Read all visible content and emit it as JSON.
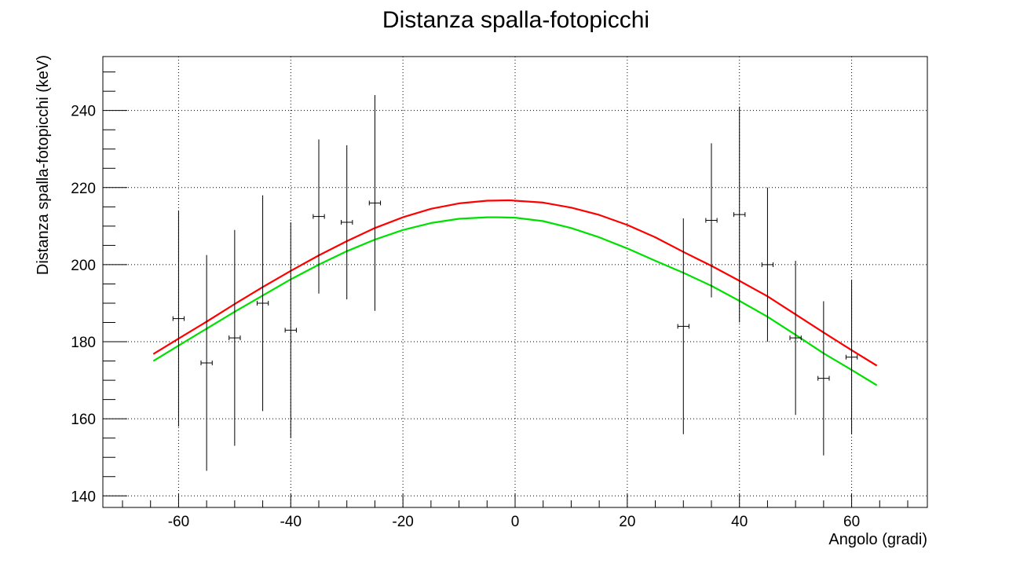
{
  "chart_data": {
    "type": "scatter",
    "title": "Distanza spalla-fotopicchi",
    "xlabel": "Angolo (gradi)",
    "ylabel": "Distanza spalla-fotopicchi (keV)",
    "xlim": [
      -73.5,
      73.5
    ],
    "ylim": [
      137,
      254
    ],
    "xticks": [
      -60,
      -40,
      -20,
      0,
      20,
      40,
      60
    ],
    "yticks": [
      140,
      160,
      180,
      200,
      220,
      240
    ],
    "grid": true,
    "points": [
      {
        "x": -60,
        "y": 186,
        "xerr": 1,
        "ylo": 158,
        "yhi": 214
      },
      {
        "x": -55,
        "y": 174.5,
        "xerr": 1,
        "ylo": 146.5,
        "yhi": 202.5
      },
      {
        "x": -50,
        "y": 181,
        "xerr": 1,
        "ylo": 153,
        "yhi": 209
      },
      {
        "x": -45,
        "y": 190,
        "xerr": 1,
        "ylo": 162,
        "yhi": 218
      },
      {
        "x": -40,
        "y": 183,
        "xerr": 1,
        "ylo": 155,
        "yhi": 211
      },
      {
        "x": -35,
        "y": 212.5,
        "xerr": 1,
        "ylo": 192.5,
        "yhi": 232.5
      },
      {
        "x": -30,
        "y": 211,
        "xerr": 1,
        "ylo": 191,
        "yhi": 231
      },
      {
        "x": -25,
        "y": 216,
        "xerr": 1,
        "ylo": 188,
        "yhi": 244
      },
      {
        "x": 30,
        "y": 184,
        "xerr": 1,
        "ylo": 156,
        "yhi": 212
      },
      {
        "x": 35,
        "y": 211.5,
        "xerr": 1,
        "ylo": 191.5,
        "yhi": 231.5
      },
      {
        "x": 40,
        "y": 213,
        "xerr": 1,
        "ylo": 185,
        "yhi": 241
      },
      {
        "x": 45,
        "y": 200,
        "xerr": 1,
        "ylo": 180,
        "yhi": 220
      },
      {
        "x": 50,
        "y": 181,
        "xerr": 1,
        "ylo": 161,
        "yhi": 201
      },
      {
        "x": 55,
        "y": 170.5,
        "xerr": 1,
        "ylo": 150.5,
        "yhi": 190.5
      },
      {
        "x": 60,
        "y": 176,
        "xerr": 1,
        "ylo": 156,
        "yhi": 196
      }
    ],
    "curves": [
      {
        "color": "#ff0000",
        "x": [
          -64.5,
          -60,
          -55,
          -50,
          -45,
          -40,
          -35,
          -30,
          -25,
          -20,
          -15,
          -10,
          -5,
          -1,
          5,
          10,
          15,
          20,
          25,
          30,
          35,
          40,
          45,
          50,
          55,
          60,
          64.5
        ],
        "y": [
          176.8,
          180.8,
          185.2,
          189.8,
          194.2,
          198.4,
          202.4,
          206.1,
          209.5,
          212.3,
          214.5,
          215.9,
          216.6,
          216.7,
          216.1,
          214.8,
          212.9,
          210.3,
          207.1,
          203.3,
          199.7,
          195.8,
          191.8,
          187.1,
          182.4,
          177.8,
          173.8
        ]
      },
      {
        "color": "#00e000",
        "x": [
          -64.5,
          -60,
          -55,
          -50,
          -45,
          -40,
          -35,
          -30,
          -25,
          -20,
          -15,
          -10,
          -5,
          -3,
          0,
          5,
          10,
          15,
          20,
          25,
          30,
          35,
          40,
          45,
          50,
          55,
          60,
          64.5
        ],
        "y": [
          175,
          179,
          183.4,
          187.8,
          192,
          196.2,
          200,
          203.5,
          206.5,
          209,
          210.8,
          211.9,
          212.3,
          212.3,
          212.2,
          211.3,
          209.5,
          207.1,
          204.2,
          201,
          197.9,
          194.5,
          190.6,
          186.5,
          181.8,
          177,
          172.7,
          168.7
        ]
      }
    ]
  }
}
